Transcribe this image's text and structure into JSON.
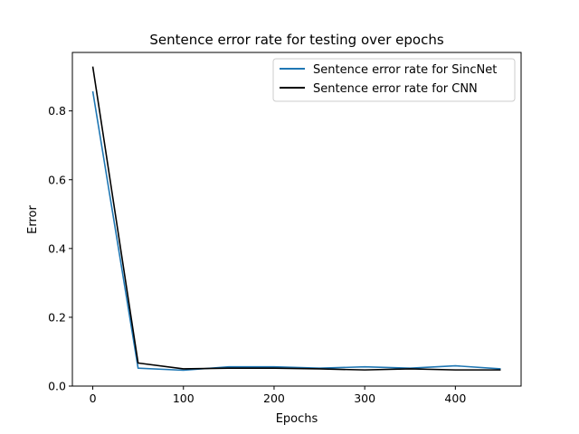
{
  "chart_data": {
    "type": "line",
    "title": "Sentence error rate for testing over epochs",
    "xlabel": "Epochs",
    "ylabel": "Error",
    "xlim": [
      -22.5,
      472.5
    ],
    "ylim": [
      0,
      0.97
    ],
    "xticks": [
      0,
      100,
      200,
      300,
      400
    ],
    "yticks": [
      0.0,
      0.2,
      0.4,
      0.6,
      0.8
    ],
    "legend_position": "top-right",
    "grid": false,
    "x": [
      0,
      50,
      100,
      150,
      200,
      250,
      300,
      350,
      400,
      450
    ],
    "series": [
      {
        "name": "Sentence error rate for SincNet",
        "color": "#1f77b4",
        "values": [
          0.857,
          0.052,
          0.046,
          0.056,
          0.056,
          0.052,
          0.056,
          0.052,
          0.059,
          0.05
        ]
      },
      {
        "name": "Sentence error rate for CNN",
        "color": "#000000",
        "values": [
          0.929,
          0.067,
          0.05,
          0.052,
          0.052,
          0.05,
          0.047,
          0.05,
          0.047,
          0.047
        ]
      }
    ]
  }
}
